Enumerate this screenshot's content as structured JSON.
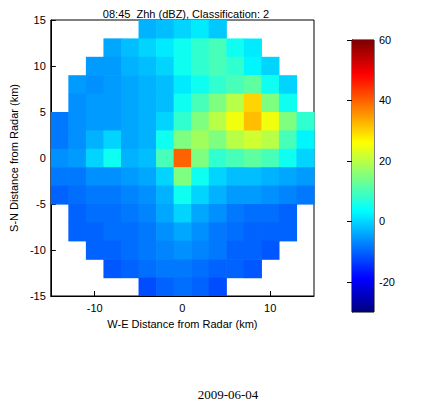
{
  "chart_data": {
    "type": "heatmap",
    "title": "08:45  Zhh (dBZ), Classification: 2",
    "xlabel": "W-E Distance from Radar (km)",
    "ylabel": "S-N Distance from Radar (km)",
    "caption": "2009-06-04",
    "xlim": [
      -15,
      15
    ],
    "ylim": [
      -15,
      15
    ],
    "xticks": [
      -10,
      0,
      10
    ],
    "yticks": [
      -15,
      -10,
      -5,
      0,
      5,
      10,
      15
    ],
    "x": [
      -14,
      -12,
      -10,
      -8,
      -6,
      -4,
      -2,
      0,
      2,
      4,
      6,
      8,
      10,
      12,
      14
    ],
    "y": [
      14,
      12,
      10,
      8,
      6,
      4,
      2,
      0,
      -2,
      -4,
      -6,
      -8,
      -10,
      -12,
      -14
    ],
    "values": [
      [
        null,
        null,
        null,
        null,
        null,
        -3,
        -2,
        0,
        2,
        -1,
        null,
        null,
        null,
        null,
        null
      ],
      [
        null,
        null,
        null,
        -4,
        -2,
        0,
        2,
        5,
        8,
        10,
        5,
        2,
        null,
        null,
        null
      ],
      [
        null,
        null,
        -5,
        -5,
        -3,
        -2,
        0,
        5,
        8,
        10,
        8,
        3,
        0,
        null,
        null
      ],
      [
        null,
        -5,
        -6,
        -5,
        -4,
        -3,
        -2,
        2,
        5,
        8,
        10,
        12,
        5,
        0,
        null
      ],
      [
        null,
        -6,
        -5,
        -5,
        -4,
        -3,
        -2,
        5,
        10,
        15,
        20,
        30,
        15,
        5,
        null
      ],
      [
        -8,
        -6,
        -5,
        -5,
        -4,
        -3,
        0,
        8,
        15,
        20,
        25,
        32,
        25,
        15,
        8
      ],
      [
        -8,
        -6,
        -3,
        0,
        -4,
        -3,
        5,
        15,
        18,
        15,
        20,
        22,
        20,
        10,
        3
      ],
      [
        -6,
        -5,
        0,
        5,
        -3,
        -2,
        10,
        40,
        15,
        8,
        10,
        12,
        10,
        5,
        0
      ],
      [
        -8,
        -8,
        -6,
        -6,
        -5,
        -4,
        0,
        15,
        5,
        0,
        -2,
        -2,
        -3,
        -4,
        -5
      ],
      [
        -10,
        -9,
        -8,
        -8,
        -7,
        -6,
        -3,
        5,
        0,
        -3,
        -5,
        -5,
        -6,
        -7,
        -8
      ],
      [
        null,
        -10,
        -9,
        -9,
        -8,
        -7,
        -4,
        0,
        -4,
        -6,
        -8,
        -9,
        -9,
        -10,
        null
      ],
      [
        null,
        -10,
        -10,
        -9,
        -9,
        -8,
        -6,
        -4,
        -6,
        -8,
        -9,
        -10,
        -10,
        -10,
        null
      ],
      [
        null,
        null,
        -10,
        -10,
        -9,
        -8,
        -7,
        -6,
        -7,
        -8,
        -10,
        -10,
        -11,
        null,
        null
      ],
      [
        null,
        null,
        null,
        -11,
        -10,
        -9,
        -8,
        -8,
        -9,
        -10,
        -10,
        -11,
        null,
        null,
        null
      ],
      [
        null,
        null,
        null,
        null,
        null,
        -12,
        -10,
        -9,
        -10,
        -12,
        null,
        null,
        null,
        null,
        null
      ]
    ],
    "colorbar_lim": [
      -30,
      60
    ],
    "colorbar_ticks": [
      -20,
      0,
      20,
      40,
      60
    ]
  }
}
